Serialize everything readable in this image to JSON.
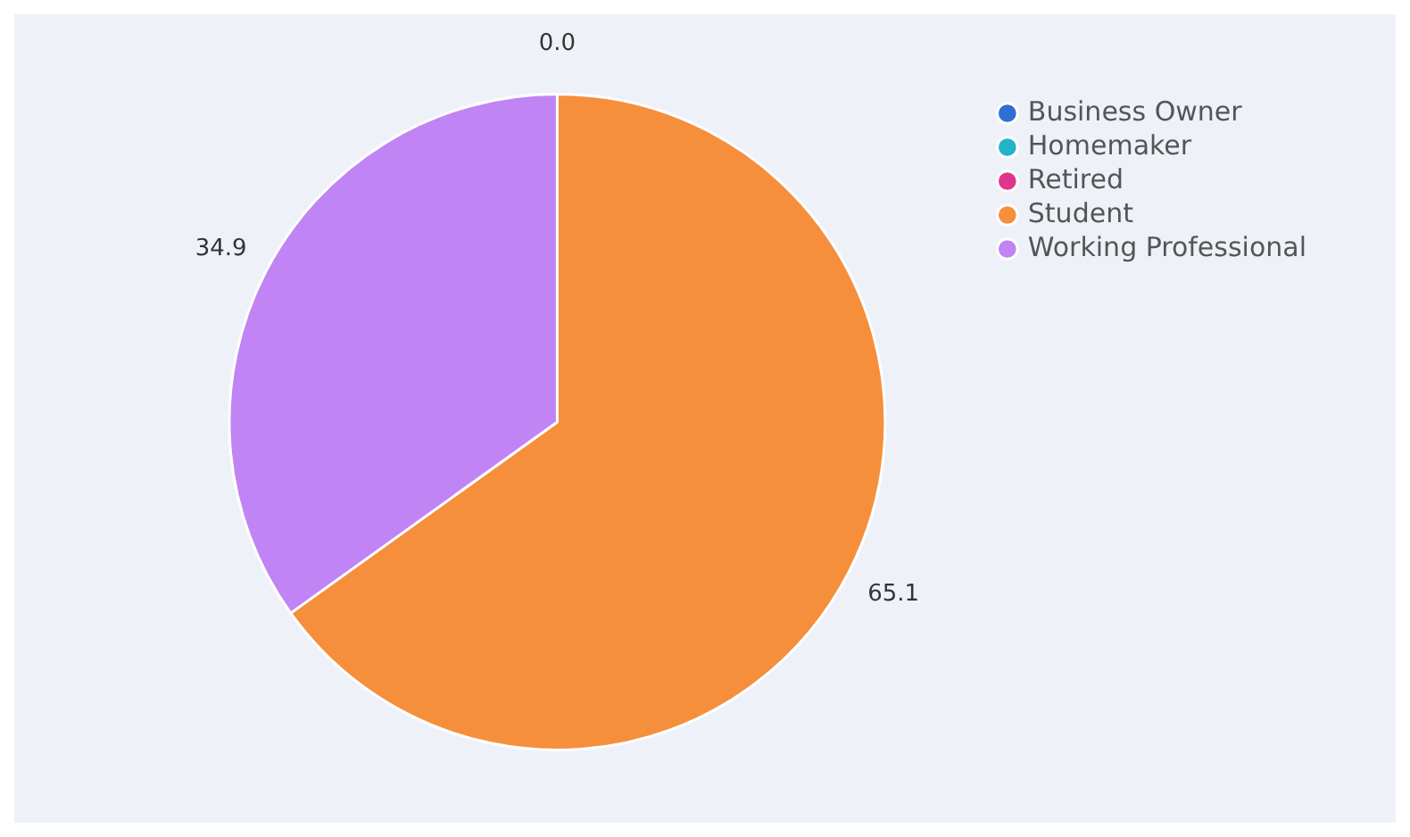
{
  "chart_data": {
    "type": "pie",
    "categories": [
      "Business Owner",
      "Homemaker",
      "Retired",
      "Student",
      "Working Professional"
    ],
    "values": [
      0,
      0,
      0,
      65.1,
      34.9
    ],
    "colors": [
      "#2e6fd1",
      "#22b5c9",
      "#e0358f",
      "#f68f3c",
      "#c184f5"
    ],
    "value_labels": [
      "0.0",
      null,
      null,
      "65.1",
      "34.9"
    ],
    "legend": "top right"
  }
}
